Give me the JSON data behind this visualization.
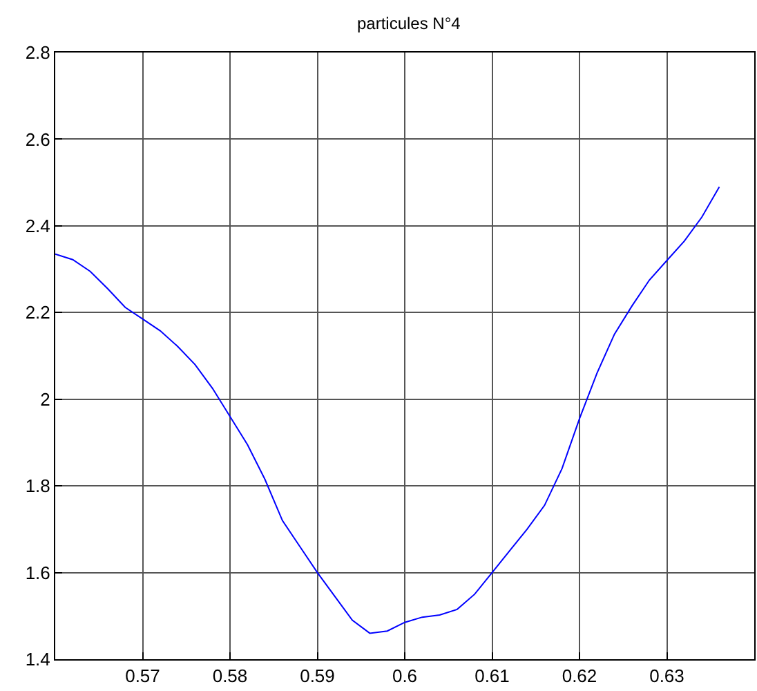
{
  "chart_data": {
    "type": "line",
    "title": "particules N°4",
    "x": [
      0.56,
      0.562,
      0.564,
      0.566,
      0.568,
      0.57,
      0.572,
      0.574,
      0.576,
      0.578,
      0.58,
      0.582,
      0.584,
      0.586,
      0.588,
      0.59,
      0.592,
      0.594,
      0.596,
      0.598,
      0.6,
      0.602,
      0.604,
      0.606,
      0.608,
      0.61,
      0.612,
      0.614,
      0.616,
      0.618,
      0.62,
      0.622,
      0.624,
      0.626,
      0.628,
      0.63,
      0.632,
      0.634,
      0.636
    ],
    "series": [
      {
        "color": "#0000ff",
        "values": [
          2.335,
          2.322,
          2.295,
          2.255,
          2.212,
          2.185,
          2.158,
          2.122,
          2.08,
          2.025,
          1.96,
          1.895,
          1.815,
          1.72,
          1.66,
          1.6,
          1.545,
          1.49,
          1.46,
          1.465,
          1.485,
          1.497,
          1.502,
          1.515,
          1.55,
          1.6,
          1.65,
          1.7,
          1.755,
          1.84,
          1.955,
          2.06,
          2.15,
          2.215,
          2.275,
          2.32,
          2.365,
          2.42,
          2.49
        ]
      }
    ],
    "xlim": [
      0.56,
      0.64
    ],
    "xticks": [
      0.57,
      0.58,
      0.59,
      0.6,
      0.61,
      0.62,
      0.63
    ],
    "ylim": [
      1.4,
      2.8
    ],
    "yticks": [
      1.4,
      1.6,
      1.8,
      2,
      2.2,
      2.4,
      2.6,
      2.8
    ],
    "grid": true,
    "legend": false,
    "marker": "none",
    "line_style": "solid"
  }
}
